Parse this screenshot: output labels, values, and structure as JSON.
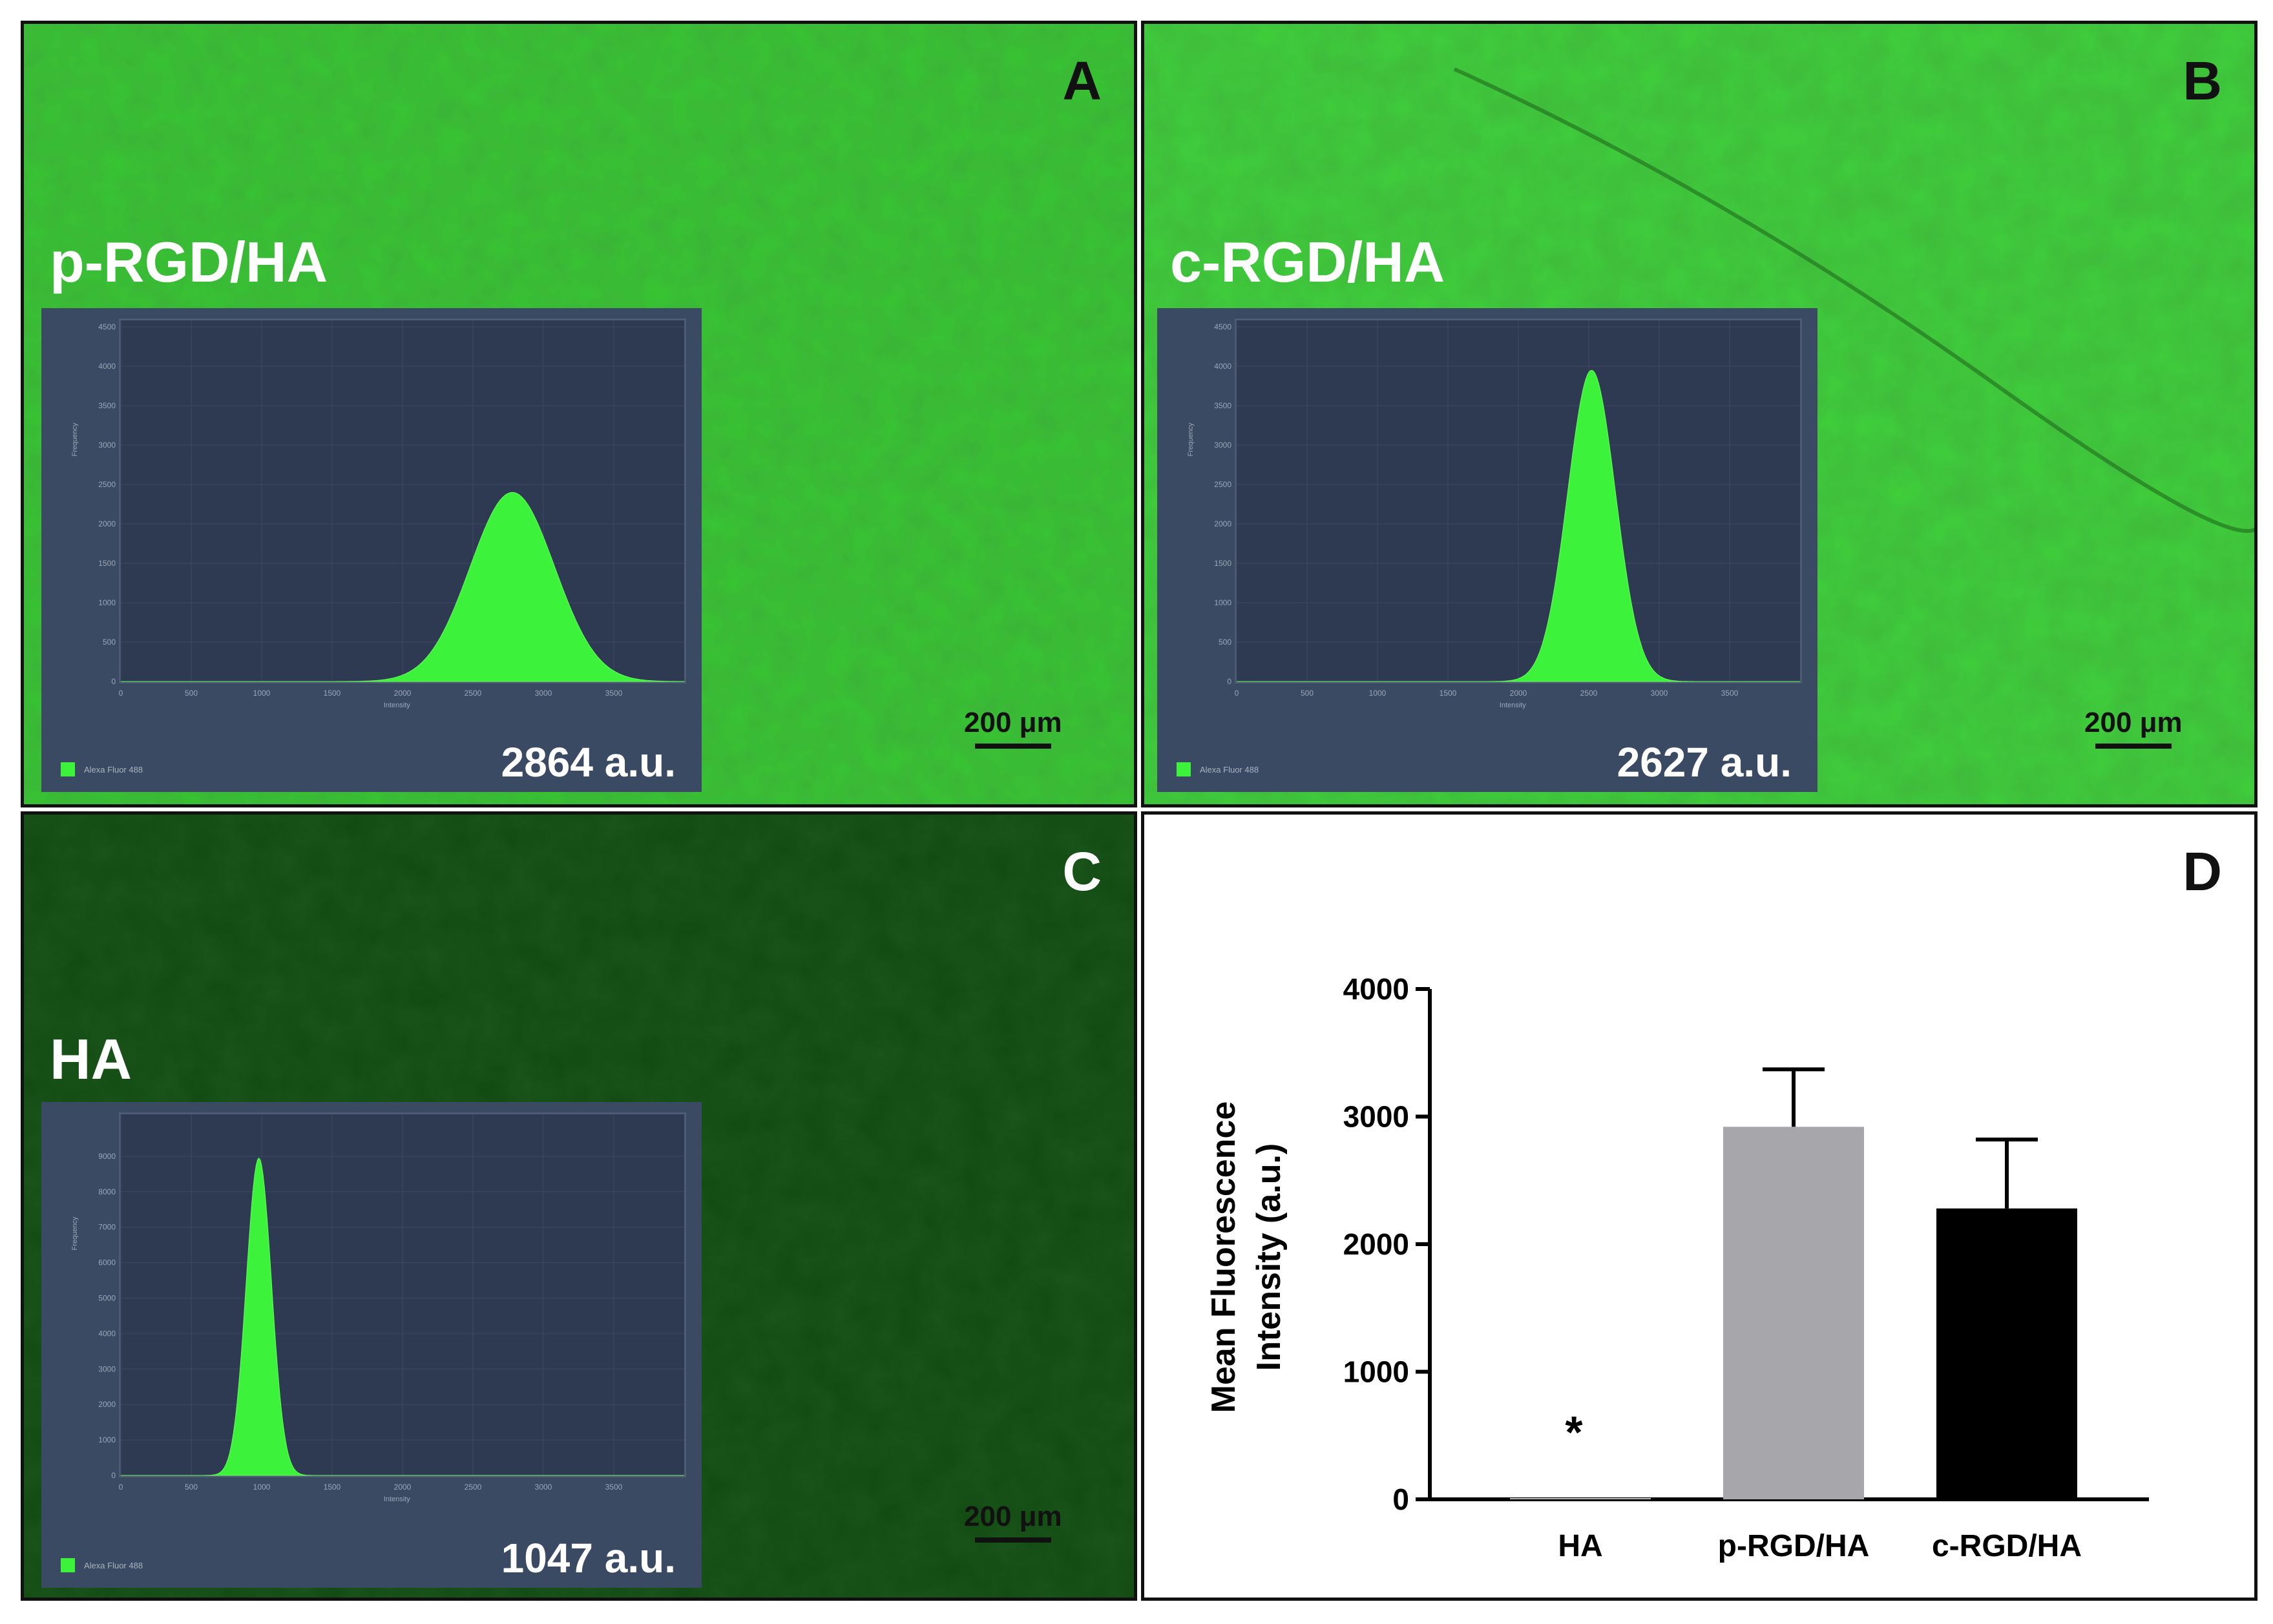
{
  "panels": {
    "A": {
      "letter": "A",
      "label": "p-RGD/HA",
      "mean": "2864 a.u.",
      "scale": "200 μm",
      "histogram": {
        "ymax": 4500,
        "yticks": [
          0,
          500,
          1000,
          1500,
          2000,
          2500,
          3000,
          3500,
          4000,
          4500
        ],
        "xticks": [
          0,
          500,
          1000,
          1500,
          2000,
          2500,
          3000,
          3500
        ],
        "xmax": 4000,
        "peak_center": 2780,
        "peak_sigma": 300,
        "peak_height": 2400,
        "ylabel": "Frequency",
        "xlabel": "Intensity",
        "legend": "Alexa Fluor 488"
      }
    },
    "B": {
      "letter": "B",
      "label": "c-RGD/HA",
      "mean": "2627 a.u.",
      "scale": "200 μm",
      "histogram": {
        "ymax": 4500,
        "yticks": [
          0,
          500,
          1000,
          1500,
          2000,
          2500,
          3000,
          3500,
          4000,
          4500
        ],
        "xticks": [
          0,
          500,
          1000,
          1500,
          2000,
          2500,
          3000,
          3500
        ],
        "xmax": 4000,
        "peak_center": 2520,
        "peak_sigma": 170,
        "peak_height": 3950,
        "ylabel": "Frequency",
        "xlabel": "Intensity",
        "legend": "Alexa Fluor 488"
      }
    },
    "C": {
      "letter": "C",
      "label": "HA",
      "mean": "1047 a.u.",
      "scale": "200 μm",
      "histogram": {
        "ymax": 10000,
        "yticks": [
          0,
          1000,
          2000,
          3000,
          4000,
          5000,
          6000,
          7000,
          8000,
          9000
        ],
        "xticks": [
          0,
          500,
          1000,
          1500,
          2000,
          2500,
          3000,
          3500
        ],
        "xmax": 4000,
        "peak_center": 980,
        "peak_sigma": 90,
        "peak_height": 8950,
        "ylabel": "Frequency",
        "xlabel": "Intensity",
        "legend": "Alexa Fluor 488"
      }
    },
    "D": {
      "letter": "D"
    }
  },
  "chart_data": {
    "type": "bar",
    "title": "",
    "xlabel": "",
    "ylabel": "Mean Fluorescence Intensity (a.u.)",
    "ylabel_lines": [
      "Mean Fluorescence",
      "Intensity (a.u.)"
    ],
    "categories": [
      "HA",
      "p-RGD/HA",
      "c-RGD/HA"
    ],
    "values": [
      10,
      2920,
      2280
    ],
    "errors": [
      0,
      450,
      540
    ],
    "colors": [
      "#bdbdbd",
      "#a7a6aa",
      "#000000"
    ],
    "annotations": [
      {
        "category": "HA",
        "text": "*"
      }
    ],
    "ylim": [
      0,
      4000
    ],
    "yticks": [
      0,
      1000,
      2000,
      3000,
      4000
    ]
  }
}
